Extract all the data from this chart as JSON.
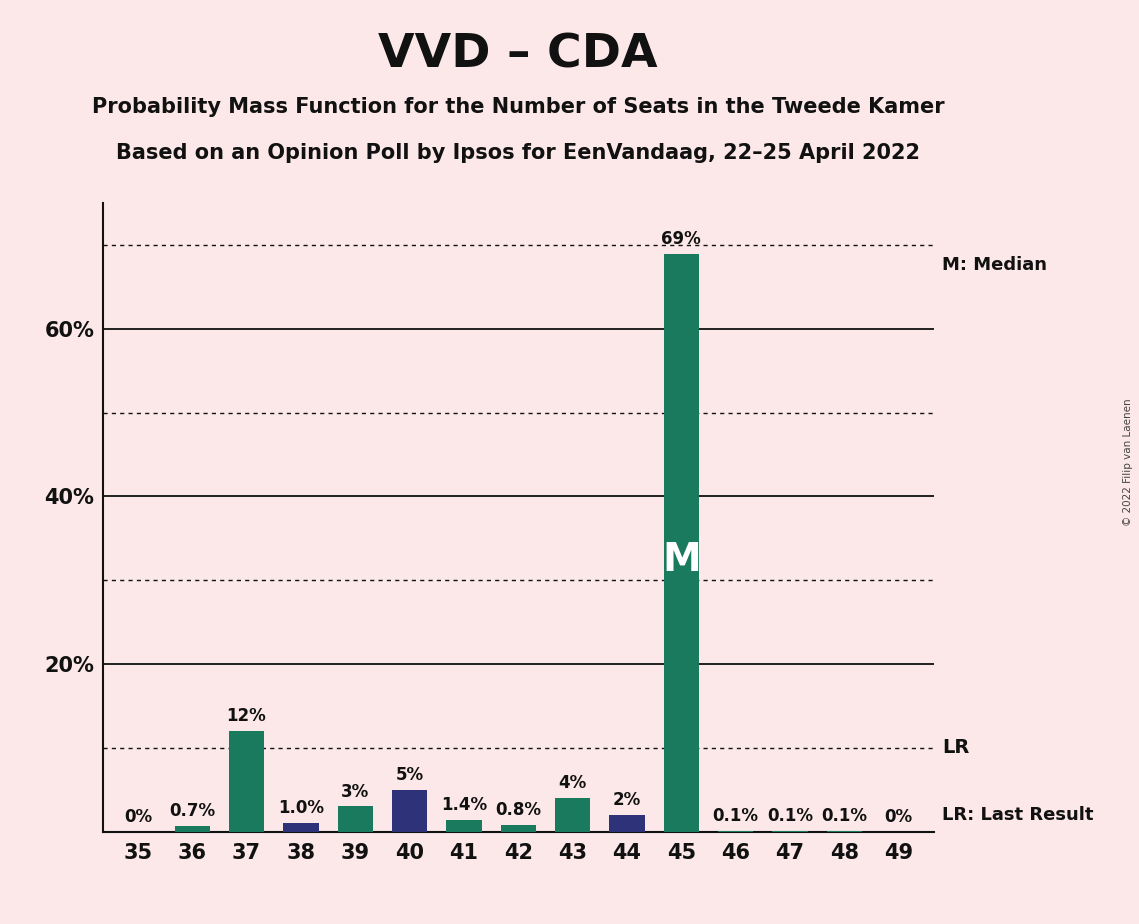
{
  "title": "VVD – CDA",
  "subtitle1": "Probability Mass Function for the Number of Seats in the Tweede Kamer",
  "subtitle2": "Based on an Opinion Poll by Ipsos for EenVandaag, 22–25 April 2022",
  "copyright": "© 2022 Filip van Laenen",
  "categories": [
    35,
    36,
    37,
    38,
    39,
    40,
    41,
    42,
    43,
    44,
    45,
    46,
    47,
    48,
    49
  ],
  "values": [
    0.0,
    0.7,
    12.0,
    1.0,
    3.0,
    5.0,
    1.4,
    0.8,
    4.0,
    2.0,
    69.0,
    0.1,
    0.1,
    0.1,
    0.0
  ],
  "labels": [
    "0%",
    "0.7%",
    "12%",
    "1.0%",
    "3%",
    "5%",
    "1.4%",
    "0.8%",
    "4%",
    "2%",
    "69%",
    "0.1%",
    "0.1%",
    "0.1%",
    "0%"
  ],
  "bar_colors": [
    "#1a7a5e",
    "#1a7a5e",
    "#1a7a5e",
    "#2e3278",
    "#1a7a5e",
    "#2e3278",
    "#1a7a5e",
    "#1a7a5e",
    "#1a7a5e",
    "#2e3278",
    "#1a7a5e",
    "#1a7a5e",
    "#1a7a5e",
    "#1a7a5e",
    "#1a7a5e"
  ],
  "median_seat": 45,
  "median_label": "M",
  "lr_value": 10.0,
  "lr_label": "LR",
  "lr_annotation": "LR: Last Result",
  "median_annotation": "M: Median",
  "background_color": "#fce8e8",
  "ylim": [
    0,
    75
  ],
  "yticks": [
    0,
    10,
    20,
    30,
    40,
    50,
    60,
    70
  ],
  "solid_yticks": [
    20,
    40,
    60
  ],
  "dotted_yticks": [
    10,
    30,
    50,
    70
  ],
  "lr_dotted_value": 10.0,
  "bar_width": 0.65,
  "label_fontsize": 12,
  "tick_fontsize": 15,
  "title_fontsize": 34,
  "subtitle_fontsize": 15
}
